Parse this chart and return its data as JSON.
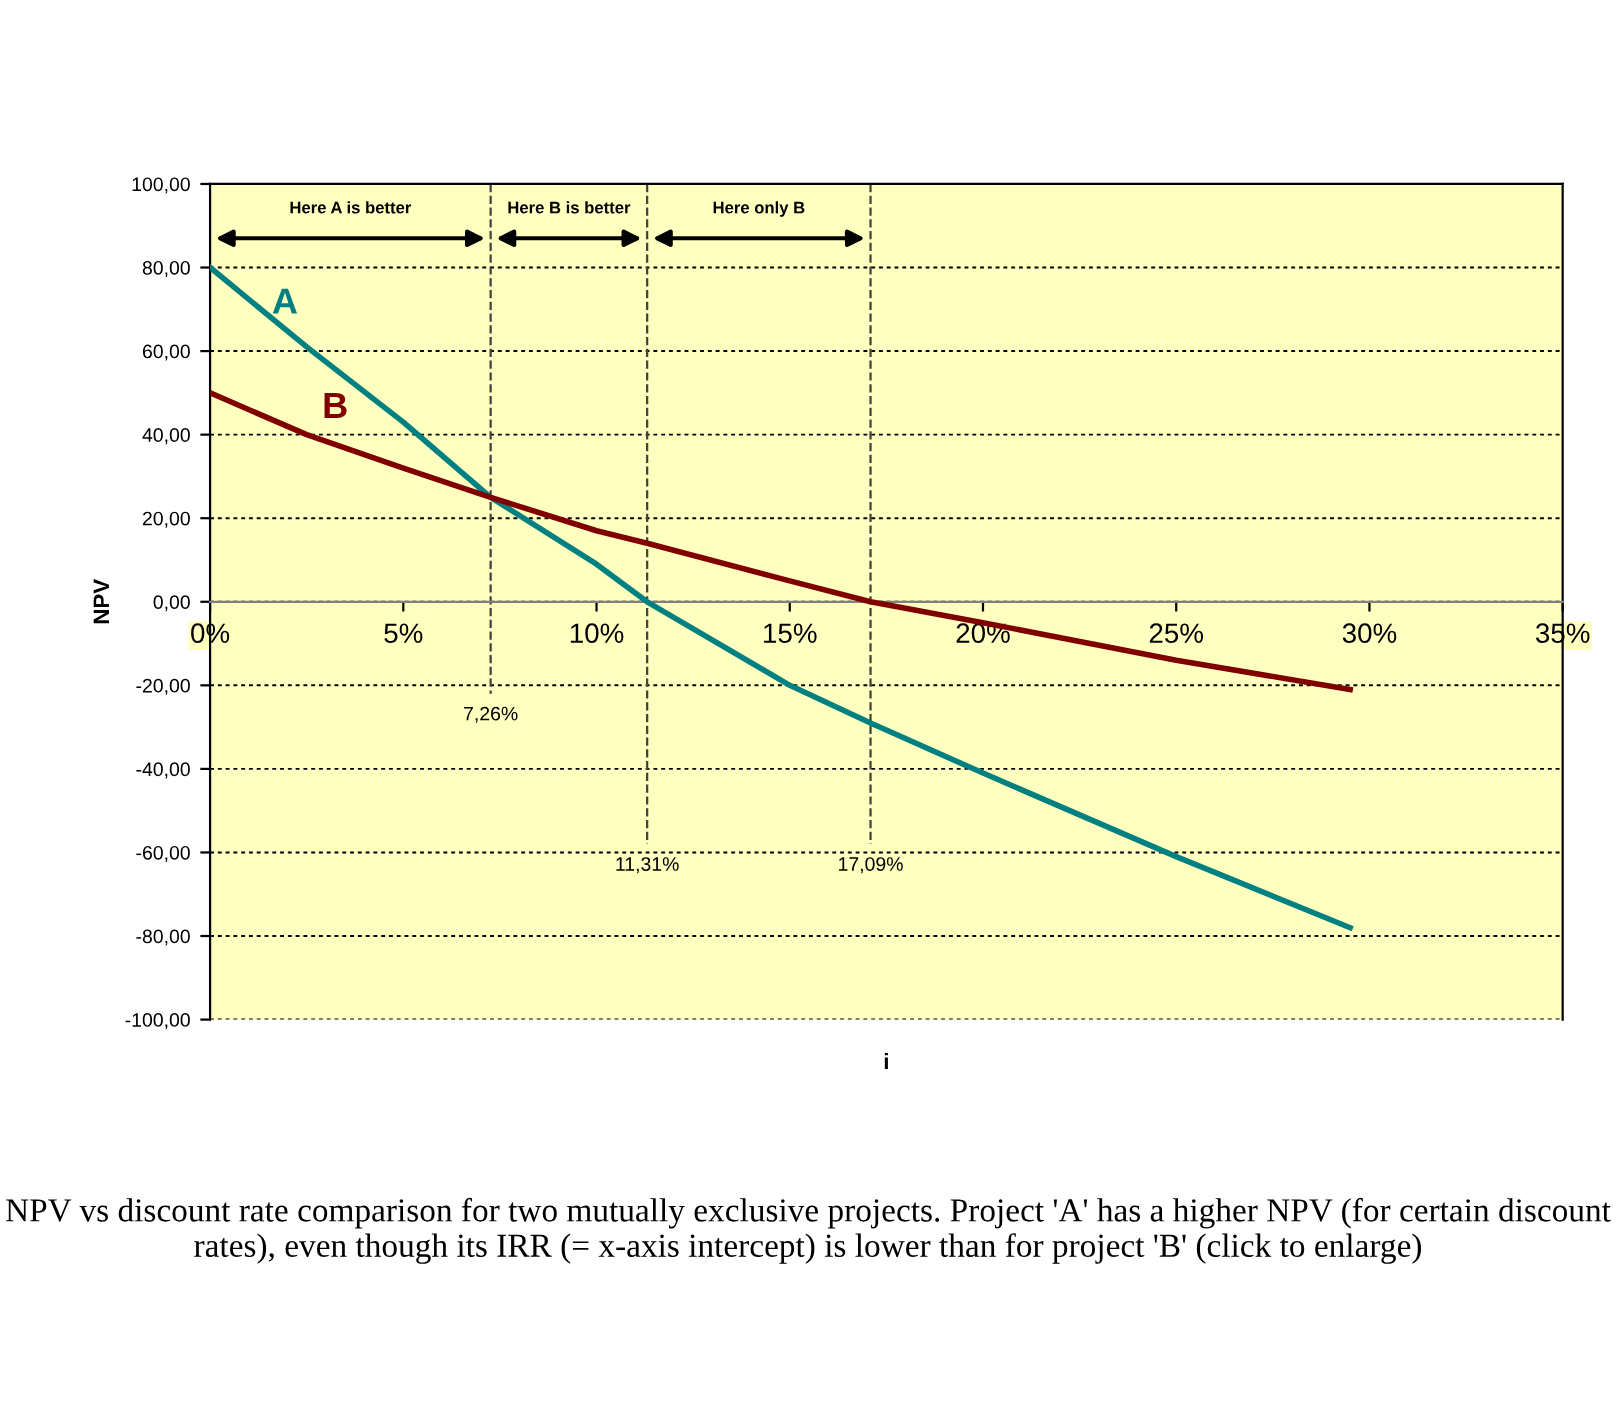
{
  "chart_data": {
    "type": "line",
    "xlabel": "i",
    "ylabel": "NPV",
    "x": [
      0,
      2.5,
      5,
      7.26,
      10,
      11.31,
      15,
      17.09,
      20,
      25,
      29.5
    ],
    "series": [
      {
        "name": "A",
        "color": "#008080",
        "values": [
          80,
          61,
          43,
          25,
          9,
          0,
          -20,
          -29,
          -41,
          -61,
          -78
        ]
      },
      {
        "name": "B",
        "color": "#800000",
        "values": [
          50,
          40,
          32,
          25,
          17,
          14,
          5,
          0,
          -5,
          -14,
          -21
        ]
      }
    ],
    "xlim": [
      0,
      35
    ],
    "xticks": [
      {
        "value": 0,
        "label": "0%"
      },
      {
        "value": 5,
        "label": "5%"
      },
      {
        "value": 10,
        "label": "10%"
      },
      {
        "value": 15,
        "label": "15%"
      },
      {
        "value": 20,
        "label": "20%"
      },
      {
        "value": 25,
        "label": "25%"
      },
      {
        "value": 30,
        "label": "30%"
      },
      {
        "value": 35,
        "label": "35%"
      }
    ],
    "ylim": [
      -100,
      100
    ],
    "yticks": [
      {
        "value": -100,
        "label": "-100,00"
      },
      {
        "value": -80,
        "label": "-80,00"
      },
      {
        "value": -60,
        "label": "-60,00"
      },
      {
        "value": -40,
        "label": "-40,00"
      },
      {
        "value": -20,
        "label": "-20,00"
      },
      {
        "value": 0,
        "label": "0,00"
      },
      {
        "value": 20,
        "label": "20,00"
      },
      {
        "value": 40,
        "label": "40,00"
      },
      {
        "value": 60,
        "label": "60,00"
      },
      {
        "value": 80,
        "label": "80,00"
      },
      {
        "value": 100,
        "label": "100,00"
      }
    ],
    "ref_lines": [
      {
        "axis": "x",
        "value": 7.26,
        "label": "7,26%",
        "line_style": "dashed"
      },
      {
        "axis": "x",
        "value": 11.31,
        "label": "11,31%",
        "line_style": "dashed"
      },
      {
        "axis": "x",
        "value": 17.09,
        "label": "17,09%",
        "line_style": "dashed"
      }
    ],
    "annotations": [
      "Here A is better",
      "Here B is better",
      "Here only B",
      "NPV vs discount rate comparison for two mutually exclusive projects. Project 'A' has a higher NPV (for certain discount rates), even though its IRR (= x-axis intercept) is lower than for project 'B' (click to enlarge)"
    ],
    "grid": "y",
    "legend": false,
    "marker": "none",
    "line_style": "solid"
  }
}
